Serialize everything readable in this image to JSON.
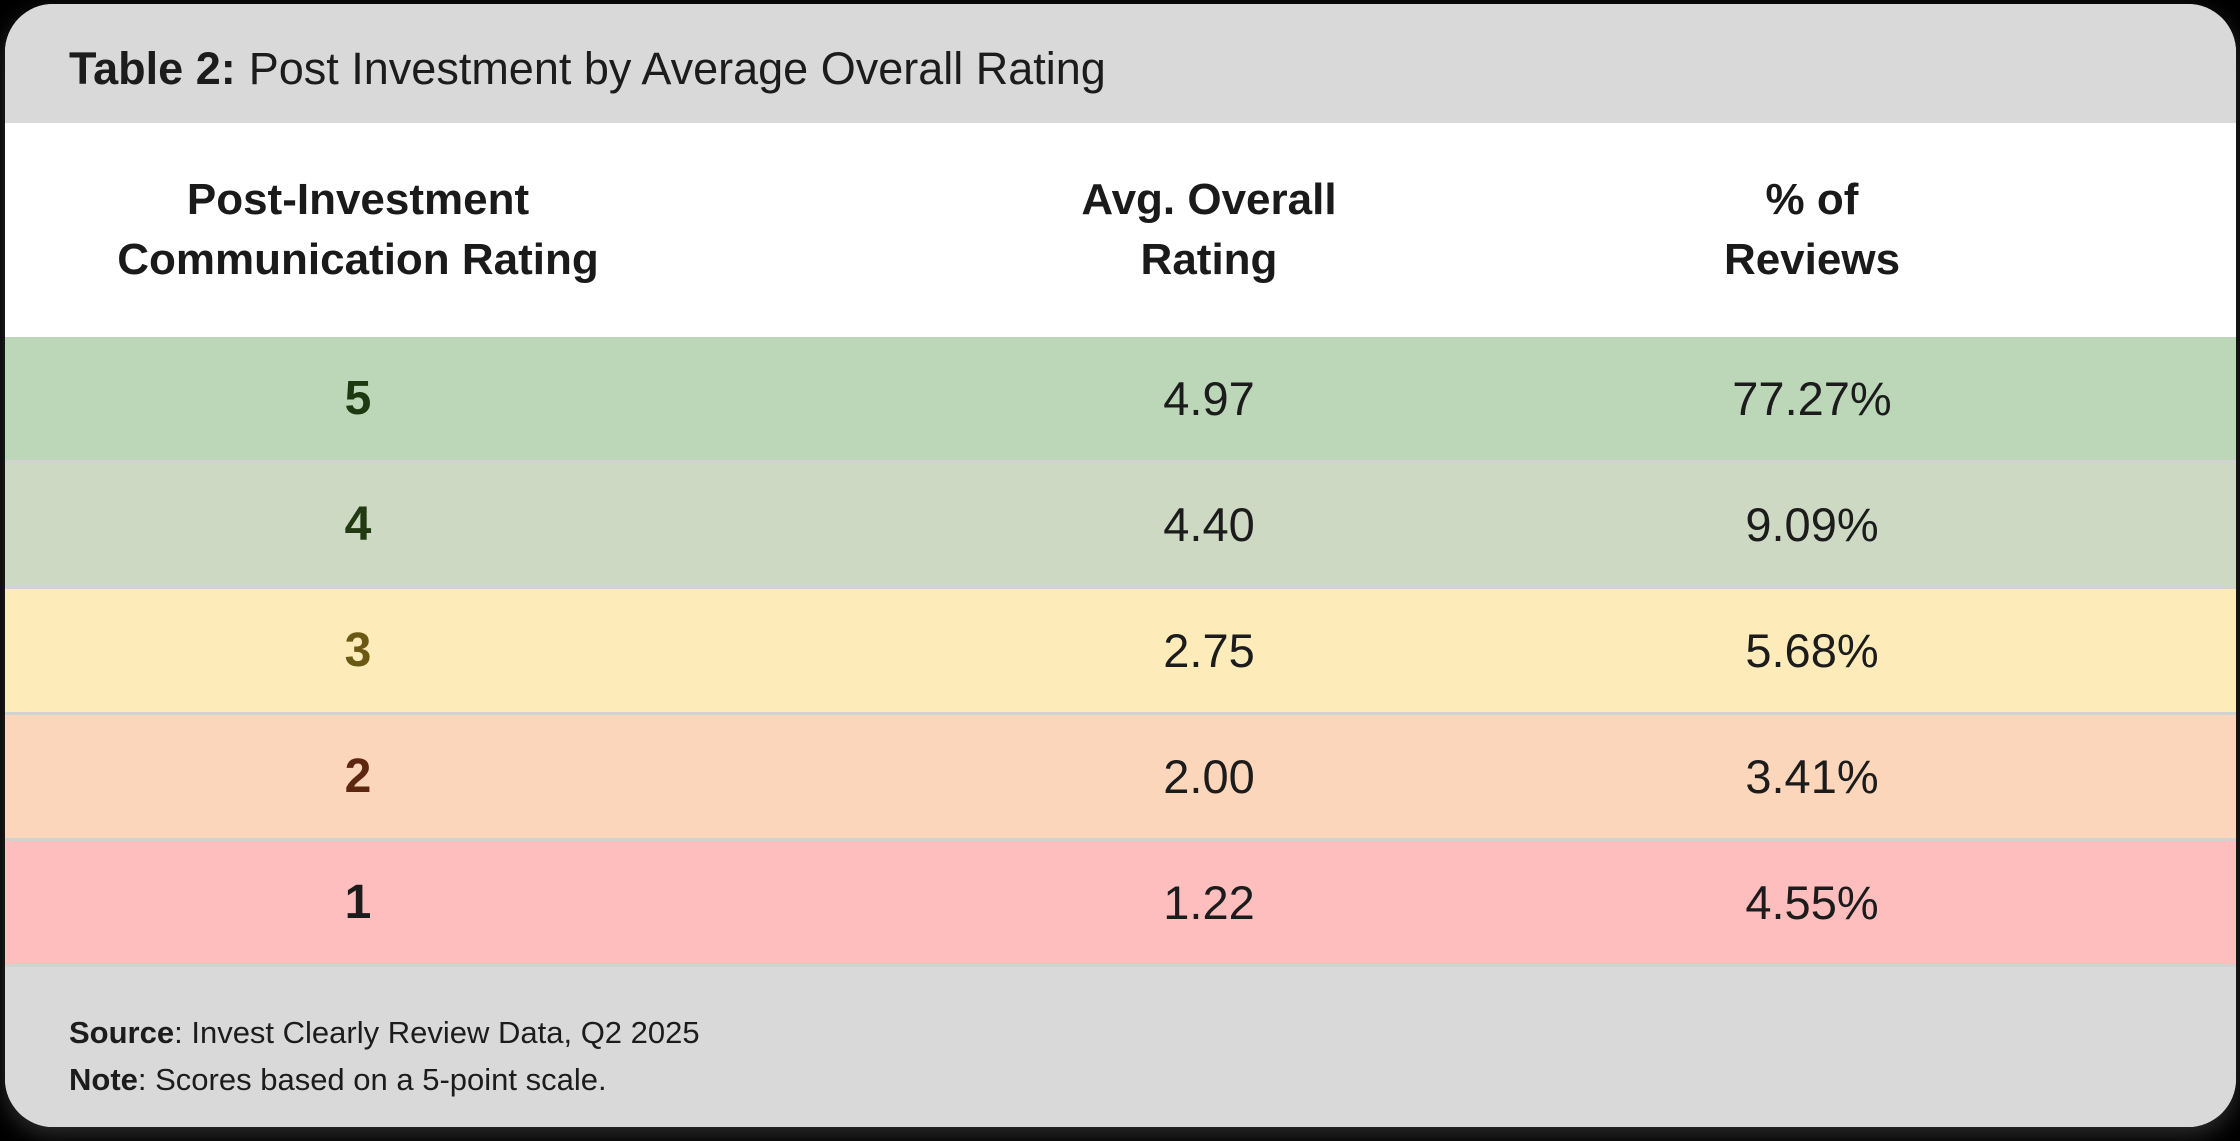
{
  "title": {
    "label": "Table 2:",
    "text": "Post Investment by Average Overall Rating"
  },
  "columns": [
    {
      "line1": "Post-Investment",
      "line2": "Communication Rating"
    },
    {
      "line1": "Avg. Overall",
      "line2": "Rating"
    },
    {
      "line1": "% of",
      "line2": "Reviews"
    }
  ],
  "rows": [
    {
      "rating": "5",
      "avg": "4.97",
      "pct": "77.27%",
      "bg": "#bbd7b8",
      "rating_color": "#1b3a12"
    },
    {
      "rating": "4",
      "avg": "4.40",
      "pct": "9.09%",
      "bg": "#cdd9c2",
      "rating_color": "#223a12"
    },
    {
      "rating": "3",
      "avg": "2.75",
      "pct": "5.68%",
      "bg": "#fdecb9",
      "rating_color": "#6b5813"
    },
    {
      "rating": "2",
      "avg": "2.00",
      "pct": "3.41%",
      "bg": "#fcd6bb",
      "rating_color": "#5c260f"
    },
    {
      "rating": "1",
      "avg": "1.22",
      "pct": "4.55%",
      "bg": "#ffbebe",
      "rating_color": "#1c1c1c"
    }
  ],
  "footer": {
    "source_label": "Source",
    "source_text": ": Invest Clearly Review Data, Q2 2025",
    "note_label": "Note",
    "note_text": ": Scores based on a 5-point scale."
  },
  "colors": {
    "page_bg": "#000000",
    "card_bg": "#ffffff",
    "bar_bg": "#d9d9d9",
    "separator": "#d2d2d0",
    "text": "#1c1c1c"
  },
  "chart_data": {
    "type": "table",
    "title": "Table 2: Post Investment by Average Overall Rating",
    "columns": [
      "Post-Investment Communication Rating",
      "Avg. Overall Rating",
      "% of Reviews"
    ],
    "rows": [
      [
        5,
        4.97,
        "77.27%"
      ],
      [
        4,
        4.4,
        "9.09%"
      ],
      [
        3,
        2.75,
        "5.68%"
      ],
      [
        2,
        2.0,
        "3.41%"
      ],
      [
        1,
        1.22,
        "4.55%"
      ]
    ],
    "source": "Invest Clearly Review Data, Q2 2025",
    "note": "Scores based on a 5-point scale.",
    "row_colors": [
      "#bbd7b8",
      "#cdd9c2",
      "#fdecb9",
      "#fcd6bb",
      "#ffbebe"
    ]
  }
}
